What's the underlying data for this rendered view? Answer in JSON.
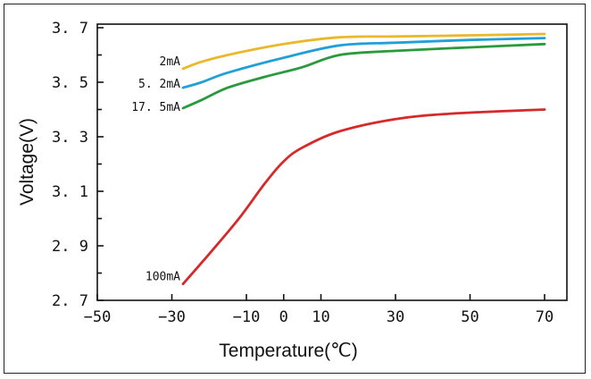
{
  "chart_data": {
    "type": "line",
    "title": "",
    "xlabel": "Temperature(℃)",
    "ylabel": "Voltage(V)",
    "xlim": [
      -50,
      72
    ],
    "ylim": [
      2.7,
      3.7
    ],
    "x_ticks": [
      -50,
      -30,
      -10,
      0,
      10,
      30,
      50,
      70
    ],
    "x_tick_labels": [
      "−50",
      "−30",
      "−10",
      "0",
      "10",
      "30",
      "50",
      "70"
    ],
    "y_ticks": [
      3.7,
      3.5,
      3.3,
      3.1,
      2.9,
      2.7
    ],
    "y_tick_labels": [
      "3. 7",
      "3. 5",
      "3. 3",
      "3. 1",
      "2. 9",
      "2. 7"
    ],
    "grid": false,
    "series": [
      {
        "name": "2mA",
        "color": "#e9b92a",
        "x": [
          -27,
          -22,
          -15,
          0,
          15,
          30,
          50,
          70
        ],
        "values": [
          3.55,
          3.575,
          3.6,
          3.64,
          3.665,
          3.668,
          3.672,
          3.677
        ]
      },
      {
        "name": "5.2mA",
        "label": "5. 2mA",
        "color": "#21a0d8",
        "x": [
          -27,
          -22,
          -15,
          0,
          15,
          30,
          50,
          70
        ],
        "values": [
          3.48,
          3.5,
          3.535,
          3.59,
          3.635,
          3.645,
          3.655,
          3.662
        ]
      },
      {
        "name": "17.5mA",
        "label": "17. 5mA",
        "color": "#2a9a3c",
        "x": [
          -27,
          -22,
          -15,
          -5,
          5,
          15,
          30,
          50,
          70
        ],
        "values": [
          3.405,
          3.435,
          3.48,
          3.52,
          3.555,
          3.6,
          3.615,
          3.628,
          3.64
        ]
      },
      {
        "name": "100mA",
        "label": "100mA",
        "color": "#d62929",
        "x": [
          -27,
          -20,
          -12,
          -5,
          0,
          5,
          15,
          30,
          45,
          70
        ],
        "values": [
          2.76,
          2.87,
          3.0,
          3.13,
          3.21,
          3.26,
          3.32,
          3.365,
          3.385,
          3.4
        ]
      }
    ]
  }
}
